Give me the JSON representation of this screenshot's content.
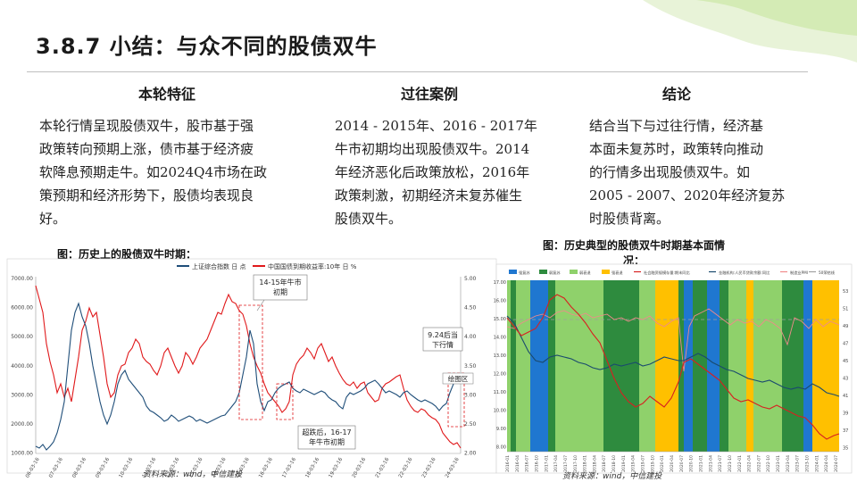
{
  "slide": {
    "title": "3.8.7 小结：与众不同的股债双牛",
    "columns": [
      {
        "heading": "本轮特征",
        "lines": [
          "本轮行情呈现股债双牛，股市基于强",
          "政策转向预期上涨，债市基于经济疲",
          "软降息预期走牛。如2024Q4市场在政",
          "策预期和经济形势下，股债均表现良",
          "好。"
        ]
      },
      {
        "heading": "过往案例",
        "lines": [
          "2014 - 2015年、2016 - 2017年",
          "牛市初期均出现股债双牛。2014",
          "年经济恶化后政策放松，2016年",
          "政策刺激，初期经济未复苏催生",
          "股债双牛。"
        ]
      },
      {
        "heading": "结论",
        "lines": [
          "结合当下与过往行情，经济基",
          "本面未复苏时，政策转向推动",
          "的行情多出现股债双牛。如",
          "2005 - 2007、2020年经济复苏",
          "时股债背离。"
        ]
      }
    ]
  },
  "left_chart": {
    "caption": "图：历史上的股债双牛时期：",
    "source": "资料来源：wind，中信建投",
    "legend": [
      "上证综合指数 日 点",
      "中国国债到期收益率:10年 日 %"
    ],
    "left_ticks": [
      "7000.00",
      "6000.00",
      "5000.00",
      "4000.00",
      "3000.00",
      "2000.00",
      "1000.00"
    ],
    "right_ticks": [
      "5.00",
      "4.50",
      "4.00",
      "3.50",
      "3.00",
      "2.50",
      "2.00"
    ],
    "x_ticks": [
      "06-03-16",
      "07-03-16",
      "08-03-16",
      "09-03-16",
      "10-03-16",
      "11-03-16",
      "12-03-16",
      "13-03-16",
      "14-03-16",
      "15-03-16",
      "16-03-16",
      "17-03-16",
      "18-03-16",
      "19-03-16",
      "20-03-16",
      "21-03-16",
      "22-03-16",
      "23-03-16",
      "24-03-16"
    ],
    "annotations": {
      "a1": [
        "14-15年牛市",
        "初期"
      ],
      "a2": [
        "超跌后，16-17",
        "年牛市初期"
      ],
      "a3": [
        "9.24后当",
        "下行情"
      ],
      "a4": "绘图区"
    },
    "colors": {
      "stock": "#1f4e79",
      "bond": "#e0191b"
    }
  },
  "right_chart": {
    "caption_line1": "图：历史典型的股债双牛时期基本面情",
    "caption_line2": "况：",
    "source": "资料来源：wind，中信建投",
    "legend": [
      "强复苏",
      "弱复苏",
      "弱衰退",
      "强衰退",
      "社会融资规模存量:期末同比",
      "金融机构:人民币贷款余额:同比",
      "制造业PMI",
      "50荣枯线"
    ],
    "left_ticks": [
      "17.00",
      "16.00",
      "15.00",
      "14.00",
      "13.00",
      "12.00",
      "11.00",
      "10.00",
      "9.00",
      "8.00"
    ],
    "right_ticks": [
      "53",
      "51",
      "49",
      "47",
      "45",
      "43",
      "41",
      "39",
      "37",
      "35"
    ],
    "x_ticks": [
      "2016-01",
      "2016-04",
      "2016-07",
      "2016-10",
      "2017-01",
      "2017-04",
      "2017-07",
      "2017-10",
      "2018-01",
      "2018-04",
      "2018-07",
      "2018-10",
      "2019-01",
      "2019-04",
      "2019-07",
      "2019-10",
      "2020-01",
      "2020-04",
      "2020-07",
      "2020-10",
      "2021-01",
      "2021-04",
      "2021-07",
      "2021-10",
      "2022-01",
      "2022-04",
      "2022-07",
      "2022-10",
      "2023-01",
      "2023-04",
      "2023-07",
      "2023-10",
      "2024-01",
      "2024-04",
      "2024-07"
    ],
    "colors": {
      "strong_recovery": "#1f77d0",
      "weak_recovery": "#2e8b3e",
      "weak_recession": "#8fd16b",
      "strong_recession": "#ffc000",
      "tsf": "#d82020",
      "loans": "#1a4a6e",
      "pmi": "#f08a8a"
    }
  }
}
